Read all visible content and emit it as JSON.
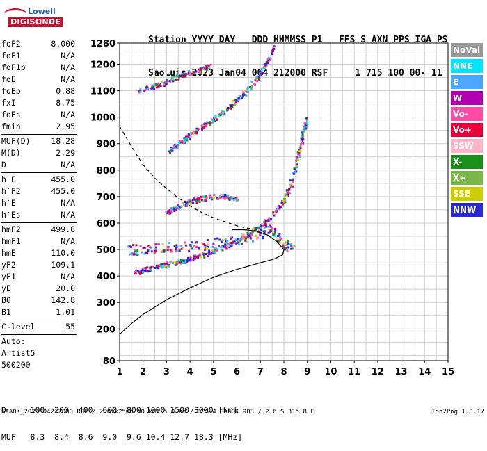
{
  "logo": {
    "line1": "Lowell",
    "line2": "DIGISONDE"
  },
  "header": {
    "line1": "Station YYYY DAY   DDD HHMMSS P1   FFS S AXN PPS IGA PS",
    "line2": "SaoLuis 2023 Jan04 004 212000 RSF     1 715 100 00- 11"
  },
  "params": [
    {
      "label": "foF2",
      "value": "8.000"
    },
    {
      "label": "foF1",
      "value": "N/A"
    },
    {
      "label": "foF1p",
      "value": "N/A"
    },
    {
      "label": "foE",
      "value": "N/A"
    },
    {
      "label": "foEp",
      "value": "0.88"
    },
    {
      "label": "fxI",
      "value": "8.75"
    },
    {
      "label": "foEs",
      "value": "N/A"
    },
    {
      "label": "fmin",
      "value": "2.95"
    },
    {
      "sep": true
    },
    {
      "label": "MUF(D)",
      "value": "18.28"
    },
    {
      "label": "M(D)",
      "value": "2.29"
    },
    {
      "label": "D",
      "value": "N/A"
    },
    {
      "sep": true
    },
    {
      "label": "h`F",
      "value": "455.0"
    },
    {
      "label": "h`F2",
      "value": "455.0"
    },
    {
      "label": "h`E",
      "value": "N/A"
    },
    {
      "label": "h`Es",
      "value": "N/A"
    },
    {
      "sep": true
    },
    {
      "label": "hmF2",
      "value": "499.8"
    },
    {
      "label": "hmF1",
      "value": "N/A"
    },
    {
      "label": "hmE",
      "value": "110.0"
    },
    {
      "label": "yF2",
      "value": "109.1"
    },
    {
      "label": "yF1",
      "value": "N/A"
    },
    {
      "label": "yE",
      "value": "20.0"
    },
    {
      "label": "B0",
      "value": "142.8"
    },
    {
      "label": "B1",
      "value": "1.01"
    },
    {
      "sep": true
    },
    {
      "label": "C-level",
      "value": "55"
    },
    {
      "sep": true
    },
    {
      "plain": "Auto:"
    },
    {
      "plain": "Artist5"
    },
    {
      "plain": "500200"
    }
  ],
  "legend": [
    {
      "label": "NoVal",
      "color": "#999999"
    },
    {
      "label": "NNE",
      "color": "#00e5ff"
    },
    {
      "label": "E",
      "color": "#4da6ff"
    },
    {
      "label": "W",
      "color": "#b000b0"
    },
    {
      "label": "Vo-",
      "color": "#ff4da6"
    },
    {
      "label": "Vo+",
      "color": "#e8003a"
    },
    {
      "label": "SSW",
      "color": "#ffb3c6"
    },
    {
      "label": "X-",
      "color": "#1a8f1a"
    },
    {
      "label": "X+",
      "color": "#7ab648"
    },
    {
      "label": "SSE",
      "color": "#cccc00"
    },
    {
      "label": "NNW",
      "color": "#2b2bd4"
    }
  ],
  "bottom": {
    "d_line": "D     100  200  400  600  800 1000 1500 3000 [km]",
    "muf_line": "MUF   8.3  8.4  8.6  9.0  9.6 10.4 12.7 18.3 [MHz]"
  },
  "footer": {
    "left": "SAA0K_2023004212000.RSF / 280fx256h 50 kHz 5.0 km / DPS-4 SAA0K 903 / 2.6 S 315.8 E",
    "right": "Ion2Png 1.3.17"
  },
  "chart_data": {
    "type": "scatter",
    "title": "",
    "xlabel": "",
    "ylabel": "",
    "xlim": [
      1,
      15
    ],
    "ylim": [
      80,
      1280
    ],
    "x_ticks": [
      1,
      2,
      3,
      4,
      5,
      6,
      7,
      8,
      9,
      10,
      11,
      12,
      13,
      14,
      15
    ],
    "y_ticks": [
      80,
      200,
      300,
      400,
      500,
      600,
      700,
      800,
      900,
      1000,
      1100,
      1200,
      1280
    ],
    "grid": true,
    "profile_solid": [
      [
        1.0,
        180
      ],
      [
        1.5,
        220
      ],
      [
        2.0,
        255
      ],
      [
        3.0,
        310
      ],
      [
        4.0,
        355
      ],
      [
        5.0,
        395
      ],
      [
        6.0,
        425
      ],
      [
        7.0,
        450
      ],
      [
        7.6,
        465
      ],
      [
        7.95,
        480
      ],
      [
        8.0,
        500
      ],
      [
        7.7,
        530
      ],
      [
        7.3,
        555
      ],
      [
        6.8,
        570
      ],
      [
        6.3,
        575
      ],
      [
        5.8,
        575
      ]
    ],
    "profile_dashed": [
      [
        1.0,
        965
      ],
      [
        1.5,
        890
      ],
      [
        2.0,
        820
      ],
      [
        2.5,
        770
      ],
      [
        3.0,
        730
      ],
      [
        3.5,
        695
      ],
      [
        4.0,
        665
      ],
      [
        4.5,
        640
      ],
      [
        5.0,
        620
      ],
      [
        5.5,
        605
      ],
      [
        6.0,
        590
      ],
      [
        6.5,
        580
      ],
      [
        7.0,
        575
      ]
    ],
    "traces": [
      {
        "name": "F main trace",
        "points": [
          [
            1.6,
            410
          ],
          [
            2.0,
            420
          ],
          [
            2.5,
            432
          ],
          [
            3.0,
            442
          ],
          [
            3.5,
            452
          ],
          [
            4.0,
            462
          ],
          [
            4.5,
            475
          ],
          [
            5.0,
            492
          ],
          [
            5.5,
            510
          ],
          [
            6.0,
            530
          ],
          [
            6.5,
            555
          ],
          [
            7.0,
            585
          ],
          [
            7.5,
            625
          ],
          [
            8.0,
            680
          ],
          [
            8.3,
            740
          ],
          [
            8.5,
            810
          ],
          [
            8.7,
            880
          ],
          [
            8.9,
            960
          ],
          [
            9.0,
            990
          ]
        ]
      },
      {
        "name": "2F trace",
        "points": [
          [
            3.1,
            870
          ],
          [
            3.5,
            895
          ],
          [
            4.0,
            930
          ],
          [
            4.5,
            960
          ],
          [
            5.0,
            990
          ],
          [
            5.5,
            1025
          ],
          [
            6.0,
            1060
          ],
          [
            6.5,
            1105
          ],
          [
            7.0,
            1160
          ],
          [
            7.3,
            1210
          ],
          [
            7.6,
            1260
          ]
        ]
      },
      {
        "name": "3F trace",
        "points": [
          [
            1.8,
            1095
          ],
          [
            2.5,
            1115
          ],
          [
            3.0,
            1130
          ],
          [
            3.5,
            1150
          ],
          [
            4.0,
            1165
          ],
          [
            4.5,
            1180
          ],
          [
            4.9,
            1190
          ]
        ]
      },
      {
        "name": "spread F lower",
        "points": [
          [
            1.4,
            500
          ],
          [
            2.0,
            500
          ],
          [
            3.0,
            505
          ],
          [
            4.0,
            510
          ],
          [
            5.0,
            520
          ],
          [
            6.0,
            535
          ],
          [
            7.0,
            555
          ],
          [
            7.5,
            580
          ],
          [
            8.0,
            510
          ],
          [
            8.4,
            520
          ]
        ]
      },
      {
        "name": "mid trace",
        "points": [
          [
            3.0,
            640
          ],
          [
            3.5,
            660
          ],
          [
            4.0,
            680
          ],
          [
            4.5,
            690
          ],
          [
            5.0,
            700
          ],
          [
            5.5,
            700
          ],
          [
            6.0,
            690
          ]
        ]
      }
    ]
  }
}
